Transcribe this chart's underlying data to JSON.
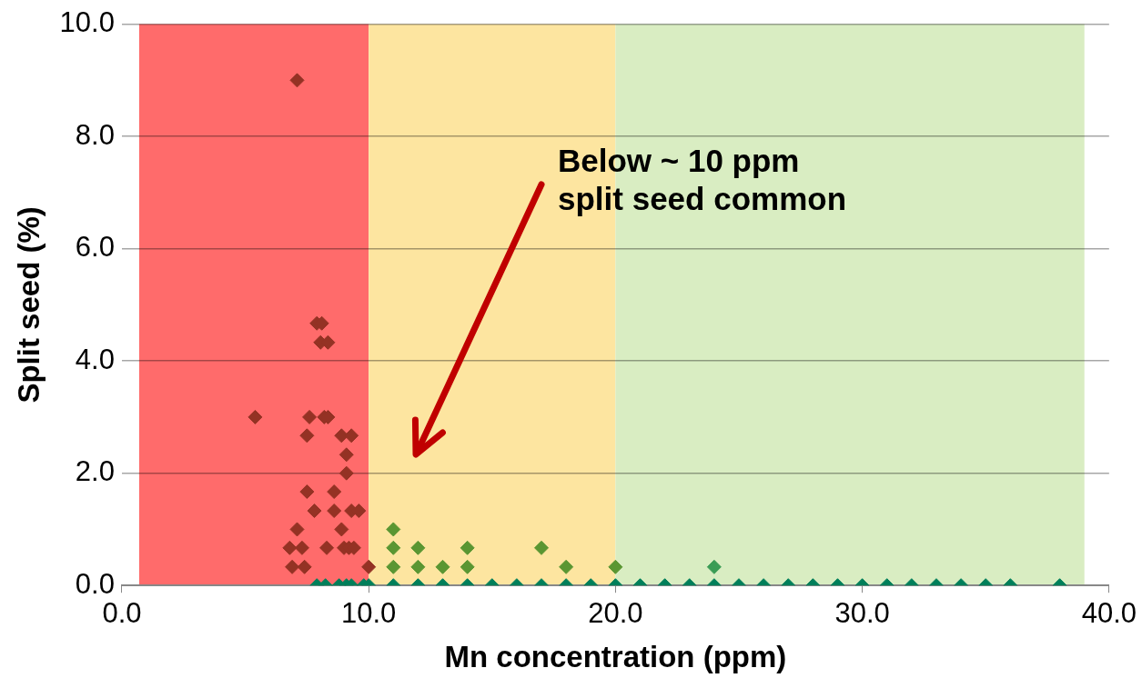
{
  "chart_data": {
    "type": "scatter",
    "xlabel": "Mn concentration (ppm)",
    "ylabel": "Split seed (%)",
    "xlim": [
      0,
      40
    ],
    "xticks": [
      {
        "value": 0,
        "label": "0.0"
      },
      {
        "value": 10,
        "label": "10.0"
      },
      {
        "value": 20,
        "label": "20.0"
      },
      {
        "value": 30,
        "label": "30.0"
      },
      {
        "value": 40,
        "label": "40.0"
      }
    ],
    "ylim": [
      0,
      10
    ],
    "yticks": [
      {
        "value": 0,
        "label": "0.0"
      },
      {
        "value": 2,
        "label": "2.0"
      },
      {
        "value": 4,
        "label": "4.0"
      },
      {
        "value": 6,
        "label": "6.0"
      },
      {
        "value": 8,
        "label": "8.0"
      },
      {
        "value": 10,
        "label": "10.0"
      }
    ],
    "grid": "y",
    "legend": false,
    "marker": "diamond",
    "bands": [
      {
        "axis": "x",
        "from": 0.7,
        "to": 10,
        "color": "#ff6b6b"
      },
      {
        "axis": "x",
        "from": 10,
        "to": 20,
        "color": "#fde5a0"
      },
      {
        "axis": "x",
        "from": 20,
        "to": 39,
        "color": "#d9edc2"
      }
    ],
    "annotations": [
      "Below ~ 10 ppm\nsplit seed common"
    ],
    "series": [
      {
        "color": "#943224",
        "x": [
          7.1,
          7.9,
          8.1,
          8.05,
          8.35,
          5.4,
          7.6,
          8.2,
          8.35,
          7.5,
          8.9,
          9.3,
          9.1,
          9.1,
          7.5,
          8.6,
          7.8,
          8.6,
          9.3,
          9.6,
          7.1,
          8.9,
          6.8,
          7.3,
          8.3,
          9.0,
          9.2,
          9.4,
          6.9,
          7.4,
          10.0
        ],
        "values": [
          9.0,
          4.67,
          4.67,
          4.33,
          4.33,
          3.0,
          3.0,
          3.0,
          3.0,
          2.67,
          2.67,
          2.67,
          2.33,
          2.0,
          1.67,
          1.67,
          1.33,
          1.33,
          1.33,
          1.33,
          1.0,
          1.0,
          0.67,
          0.67,
          0.67,
          0.67,
          0.67,
          0.67,
          0.33,
          0.33,
          0.33
        ]
      },
      {
        "color": "#5a9632",
        "x": [
          11,
          11,
          12,
          14,
          17,
          11,
          12,
          13,
          14,
          18,
          20
        ],
        "values": [
          1.0,
          0.67,
          0.67,
          0.67,
          0.67,
          0.33,
          0.33,
          0.33,
          0.33,
          0.33,
          0.33
        ]
      },
      {
        "color": "#3a9c55",
        "x": [
          24
        ],
        "values": [
          0.33
        ]
      },
      {
        "color": "#007f5a",
        "x": [
          7.9,
          8.25,
          8.8,
          9.1,
          9.3,
          9.8,
          10,
          11,
          12,
          13,
          14,
          15,
          16,
          17,
          18,
          19,
          20,
          21,
          22,
          23,
          24,
          25,
          26,
          27,
          28,
          29,
          30,
          31,
          32,
          33,
          34,
          35,
          36,
          38
        ],
        "values": [
          0,
          0,
          0,
          0,
          0,
          0,
          0,
          0,
          0,
          0,
          0,
          0,
          0,
          0,
          0,
          0,
          0,
          0,
          0,
          0,
          0,
          0,
          0,
          0,
          0,
          0,
          0,
          0,
          0,
          0,
          0,
          0,
          0,
          0
        ]
      }
    ]
  }
}
